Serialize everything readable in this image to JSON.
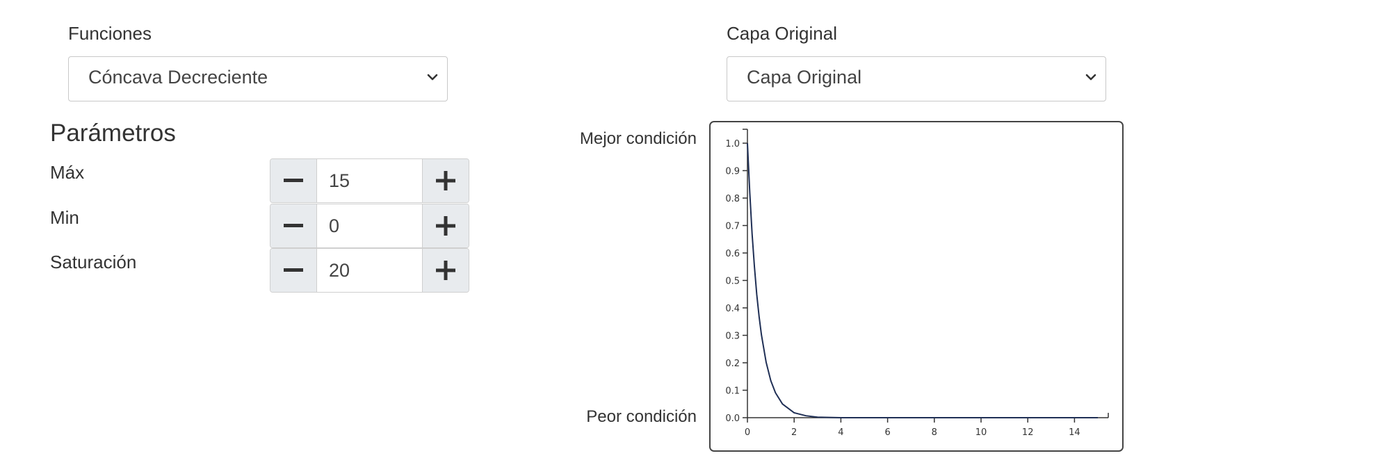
{
  "functions": {
    "label": "Funciones",
    "selected": "Cóncava Decreciente"
  },
  "layer": {
    "label": "Capa Original",
    "selected": "Capa Original"
  },
  "params": {
    "title": "Parámetros",
    "items": [
      {
        "label": "Máx",
        "value": "15"
      },
      {
        "label": "Min",
        "value": "0"
      },
      {
        "label": "Saturación",
        "value": "20"
      }
    ]
  },
  "chart_side": {
    "top": "Mejor condición",
    "bottom": "Peor condición"
  },
  "colors": {
    "curve": "#1f2f55",
    "axis": "#333333"
  },
  "chart_data": {
    "type": "line",
    "xlim": [
      0,
      15
    ],
    "ylim": [
      0,
      1.0
    ],
    "x_ticks": [
      "0",
      "2",
      "4",
      "6",
      "8",
      "10",
      "12",
      "14"
    ],
    "y_ticks": [
      "0.0",
      "0.1",
      "0.2",
      "0.3",
      "0.4",
      "0.5",
      "0.6",
      "0.7",
      "0.8",
      "0.9",
      "1.0"
    ],
    "series": [
      {
        "x": [
          0,
          0.1,
          0.2,
          0.3,
          0.4,
          0.5,
          0.6,
          0.8,
          1.0,
          1.2,
          1.5,
          2.0,
          2.5,
          3.0,
          3.5,
          4.0,
          5.0,
          6.0,
          8.0,
          10.0,
          12.0,
          15.0
        ],
        "y": [
          1.0,
          0.819,
          0.67,
          0.549,
          0.449,
          0.368,
          0.301,
          0.202,
          0.135,
          0.091,
          0.05,
          0.018,
          0.007,
          0.002,
          0.001,
          0.0,
          0.0,
          0.0,
          0.0,
          0.0,
          0.0,
          0.0
        ]
      }
    ]
  }
}
